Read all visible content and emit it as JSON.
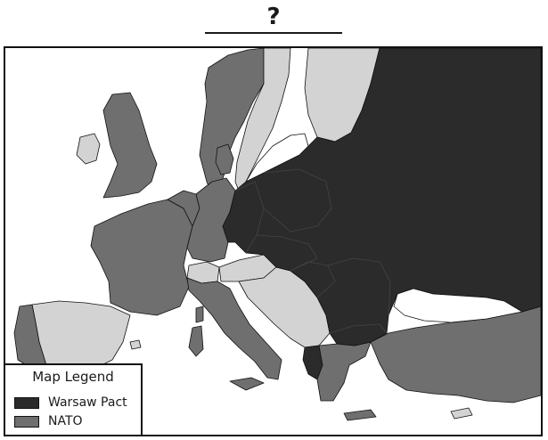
{
  "title": "?",
  "legend": {
    "title": "Map Legend",
    "items": [
      {
        "label": "Warsaw Pact",
        "color": "#2b2b2b"
      },
      {
        "label": "NATO",
        "color": "#6f6f6f"
      }
    ]
  },
  "colors": {
    "warsaw_pact": "#2b2b2b",
    "nato": "#6f6f6f",
    "neutral": "#d3d3d3",
    "water": "#ffffff",
    "border": "#111111"
  }
}
